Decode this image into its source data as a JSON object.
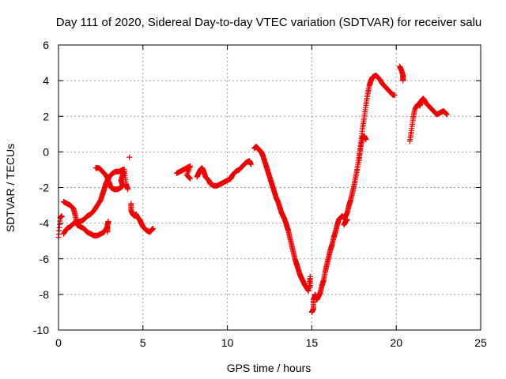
{
  "chart_data": {
    "type": "scatter",
    "title": "Day 111 of 2020, Sidereal Day-to-day VTEC variation (SDTVAR) for receiver salu",
    "xlabel": "GPS time / hours",
    "ylabel": "SDTVAR / TECUs",
    "xlim": [
      0,
      25
    ],
    "ylim": [
      -10,
      6
    ],
    "xticks": [
      "0",
      "5",
      "10",
      "15",
      "20",
      "25"
    ],
    "yticks": [
      "-10",
      "-8",
      "-6",
      "-4",
      "-2",
      "0",
      "2",
      "4",
      "6"
    ],
    "grid": true,
    "marker": "+",
    "series_color": "#ee0000",
    "series": [
      {
        "name": "salu",
        "segments": [
          [
            [
              0,
              -4.8
            ],
            [
              0.1,
              -3.7
            ],
            [
              0.2,
              -3.6
            ]
          ],
          [
            [
              0.3,
              -2.8
            ],
            [
              0.5,
              -2.9
            ],
            [
              0.7,
              -3.0
            ],
            [
              0.9,
              -3.2
            ],
            [
              1.0,
              -3.6
            ],
            [
              1.1,
              -4.1
            ],
            [
              1.3,
              -4.2
            ],
            [
              1.5,
              -4.3
            ],
            [
              1.7,
              -4.5
            ],
            [
              1.9,
              -4.6
            ],
            [
              2.1,
              -4.7
            ],
            [
              2.3,
              -4.7
            ],
            [
              2.5,
              -4.6
            ],
            [
              2.7,
              -4.5
            ],
            [
              2.9,
              -4.2
            ]
          ],
          [
            [
              0.3,
              -4.6
            ],
            [
              0.5,
              -4.3
            ],
            [
              0.7,
              -4.2
            ],
            [
              0.9,
              -4.0
            ],
            [
              1.1,
              -3.9
            ],
            [
              1.3,
              -3.9
            ],
            [
              1.5,
              -3.8
            ],
            [
              1.7,
              -3.6
            ],
            [
              1.9,
              -3.5
            ],
            [
              2.1,
              -3.3
            ],
            [
              2.3,
              -3.0
            ],
            [
              2.5,
              -2.7
            ],
            [
              2.6,
              -2.4
            ],
            [
              2.7,
              -2.1
            ],
            [
              2.8,
              -1.8
            ],
            [
              2.9,
              -1.6
            ],
            [
              3.0,
              -1.4
            ],
            [
              3.2,
              -1.2
            ],
            [
              3.4,
              -1.1
            ],
            [
              3.6,
              -1.1
            ],
            [
              3.8,
              -1.0
            ],
            [
              3.9,
              -1.0
            ]
          ],
          [
            [
              2.9,
              -4.5
            ],
            [
              2.9,
              -4.1
            ],
            [
              2.95,
              -3.9
            ]
          ],
          [
            [
              2.2,
              -0.9
            ],
            [
              2.4,
              -0.9
            ],
            [
              2.6,
              -1.1
            ],
            [
              2.8,
              -1.3
            ],
            [
              3.0,
              -1.7
            ],
            [
              3.1,
              -2.0
            ],
            [
              3.3,
              -2.1
            ],
            [
              3.5,
              -2.1
            ],
            [
              3.7,
              -2.0
            ],
            [
              3.8,
              -1.9
            ],
            [
              3.7,
              -1.6
            ],
            [
              3.8,
              -1.3
            ],
            [
              3.9,
              -1.1
            ],
            [
              4.0,
              -1.8
            ],
            [
              4.1,
              -2.1
            ]
          ],
          [
            [
              4.2,
              -0.3
            ]
          ],
          [
            [
              4.3,
              -2.9
            ],
            [
              4.3,
              -3.3
            ],
            [
              4.4,
              -3.5
            ],
            [
              4.5,
              -3.6
            ],
            [
              4.6,
              -3.5
            ],
            [
              4.7,
              -3.7
            ],
            [
              4.8,
              -3.8
            ],
            [
              4.9,
              -4.0
            ],
            [
              5.0,
              -4.2
            ],
            [
              5.2,
              -4.4
            ],
            [
              5.4,
              -4.5
            ],
            [
              5.5,
              -4.4
            ],
            [
              5.6,
              -4.3
            ]
          ],
          [
            [
              7.0,
              -1.2
            ],
            [
              7.2,
              -1.1
            ],
            [
              7.4,
              -1.0
            ],
            [
              7.6,
              -0.9
            ],
            [
              7.8,
              -0.8
            ],
            [
              7.6,
              -1.3
            ],
            [
              7.8,
              -1.5
            ]
          ],
          [
            [
              8.2,
              -1.4
            ],
            [
              8.3,
              -1.2
            ],
            [
              8.4,
              -1.0
            ],
            [
              8.5,
              -0.9
            ],
            [
              8.6,
              -1.1
            ],
            [
              8.7,
              -1.4
            ],
            [
              8.9,
              -1.6
            ],
            [
              9.0,
              -1.8
            ],
            [
              9.2,
              -1.9
            ],
            [
              9.4,
              -1.9
            ],
            [
              9.6,
              -1.8
            ],
            [
              9.8,
              -1.7
            ],
            [
              10.0,
              -1.6
            ],
            [
              10.2,
              -1.5
            ],
            [
              10.3,
              -1.3
            ],
            [
              10.5,
              -1.1
            ],
            [
              10.7,
              -1.0
            ],
            [
              10.9,
              -0.8
            ],
            [
              11.1,
              -0.6
            ],
            [
              11.3,
              -0.5
            ],
            [
              11.4,
              -0.7
            ]
          ],
          [
            [
              11.6,
              0.2
            ],
            [
              11.7,
              0.3
            ],
            [
              11.8,
              0.2
            ],
            [
              11.9,
              0.1
            ],
            [
              12.0,
              0.0
            ],
            [
              12.1,
              -0.2
            ],
            [
              12.2,
              -0.5
            ],
            [
              12.3,
              -0.8
            ],
            [
              12.4,
              -1.1
            ],
            [
              12.5,
              -1.4
            ],
            [
              12.6,
              -1.7
            ],
            [
              12.7,
              -2.0
            ],
            [
              12.8,
              -2.3
            ],
            [
              12.9,
              -2.6
            ],
            [
              13.0,
              -2.8
            ],
            [
              13.1,
              -3.1
            ],
            [
              13.2,
              -3.4
            ],
            [
              13.3,
              -3.6
            ],
            [
              13.4,
              -3.8
            ],
            [
              13.5,
              -4.1
            ],
            [
              13.6,
              -4.4
            ],
            [
              13.7,
              -4.8
            ],
            [
              13.8,
              -5.2
            ],
            [
              13.9,
              -5.6
            ],
            [
              14.0,
              -6.0
            ],
            [
              14.1,
              -6.3
            ],
            [
              14.2,
              -6.6
            ],
            [
              14.3,
              -6.9
            ],
            [
              14.4,
              -7.1
            ],
            [
              14.5,
              -7.3
            ],
            [
              14.6,
              -7.5
            ],
            [
              14.8,
              -7.8
            ],
            [
              14.9,
              -7.0
            ],
            [
              14.9,
              -7.6
            ]
          ],
          [
            [
              15.0,
              -9.0
            ],
            [
              15.1,
              -8.8
            ],
            [
              15.1,
              -8.3
            ],
            [
              15.2,
              -8.0
            ],
            [
              15.3,
              -8.3
            ],
            [
              15.4,
              -8.1
            ],
            [
              15.5,
              -7.9
            ],
            [
              15.6,
              -7.5
            ],
            [
              15.7,
              -7.2
            ],
            [
              15.8,
              -6.7
            ],
            [
              15.9,
              -6.3
            ],
            [
              16.0,
              -5.9
            ],
            [
              16.1,
              -5.5
            ],
            [
              16.2,
              -5.2
            ],
            [
              16.3,
              -4.8
            ],
            [
              16.4,
              -4.5
            ],
            [
              16.5,
              -4.1
            ],
            [
              16.6,
              -3.8
            ],
            [
              16.7,
              -3.7
            ],
            [
              16.8,
              -3.6
            ],
            [
              16.9,
              -3.7
            ],
            [
              17.0,
              -3.6
            ],
            [
              17.1,
              -3.4
            ],
            [
              17.2,
              -3.0
            ],
            [
              17.3,
              -2.7
            ],
            [
              17.4,
              -2.3
            ],
            [
              17.5,
              -1.9
            ],
            [
              17.6,
              -1.4
            ],
            [
              17.7,
              -0.9
            ],
            [
              17.8,
              -0.3
            ],
            [
              17.9,
              0.3
            ],
            [
              18.0,
              0.8
            ],
            [
              18.1,
              0.9
            ],
            [
              18.2,
              0.7
            ]
          ],
          [
            [
              16.9,
              -4.1
            ],
            [
              17.0,
              -3.9
            ],
            [
              17.1,
              -3.8
            ]
          ],
          [
            [
              17.8,
              -0.5
            ],
            [
              17.9,
              0.5
            ],
            [
              18.0,
              1.3
            ],
            [
              18.1,
              1.9
            ],
            [
              18.2,
              2.6
            ],
            [
              18.3,
              3.2
            ],
            [
              18.4,
              3.7
            ],
            [
              18.5,
              4.0
            ],
            [
              18.6,
              4.2
            ],
            [
              18.8,
              4.3
            ],
            [
              19.0,
              4.1
            ],
            [
              19.2,
              3.8
            ],
            [
              19.4,
              3.6
            ],
            [
              19.6,
              3.4
            ],
            [
              19.8,
              3.2
            ],
            [
              19.9,
              3.2
            ]
          ],
          [
            [
              20.2,
              4.8
            ],
            [
              20.3,
              4.6
            ],
            [
              20.4,
              4.3
            ],
            [
              20.4,
              4.0
            ]
          ],
          [
            [
              20.8,
              0.6
            ],
            [
              20.9,
              1.2
            ],
            [
              21.0,
              1.9
            ],
            [
              21.1,
              2.4
            ],
            [
              21.3,
              2.7
            ],
            [
              21.4,
              2.6
            ],
            [
              21.5,
              2.9
            ],
            [
              21.6,
              3.0
            ],
            [
              21.8,
              2.7
            ],
            [
              22.0,
              2.5
            ],
            [
              22.2,
              2.3
            ],
            [
              22.4,
              2.1
            ],
            [
              22.6,
              2.2
            ],
            [
              22.8,
              2.3
            ],
            [
              23.0,
              2.1
            ]
          ]
        ]
      }
    ]
  }
}
